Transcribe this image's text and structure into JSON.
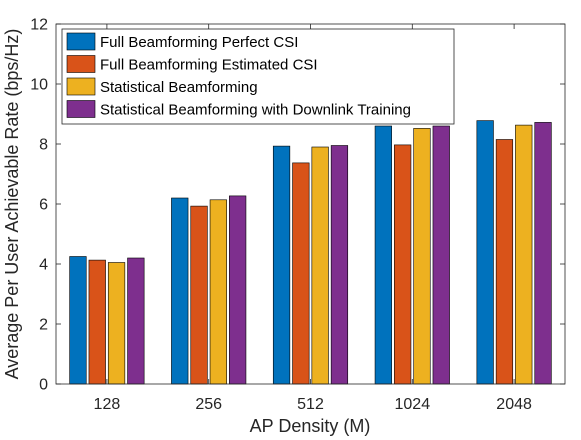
{
  "chart_data": {
    "type": "bar",
    "title": "",
    "xlabel": "AP Density (M)",
    "ylabel": "Average Per User Achievable Rate (bps/Hz)",
    "categories": [
      "128",
      "256",
      "512",
      "1024",
      "2048"
    ],
    "ylim": [
      0,
      12
    ],
    "yticks": [
      "0",
      "2",
      "4",
      "6",
      "8",
      "10",
      "12"
    ],
    "grid": false,
    "legend_position": "top-left",
    "series": [
      {
        "name": "Full Beamforming Perfect CSI",
        "color": "#0072BD",
        "values": [
          4.25,
          6.2,
          7.93,
          8.6,
          8.78
        ]
      },
      {
        "name": "Full Beamforming Estimated CSI",
        "color": "#D95319",
        "values": [
          4.13,
          5.93,
          7.37,
          7.97,
          8.15
        ]
      },
      {
        "name": "Statistical Beamforming",
        "color": "#EDB120",
        "values": [
          4.05,
          6.14,
          7.9,
          8.52,
          8.63
        ]
      },
      {
        "name": "Statistical Beamforming with Downlink Training",
        "color": "#7E2F8E",
        "values": [
          4.2,
          6.27,
          7.95,
          8.6,
          8.72
        ]
      }
    ]
  }
}
